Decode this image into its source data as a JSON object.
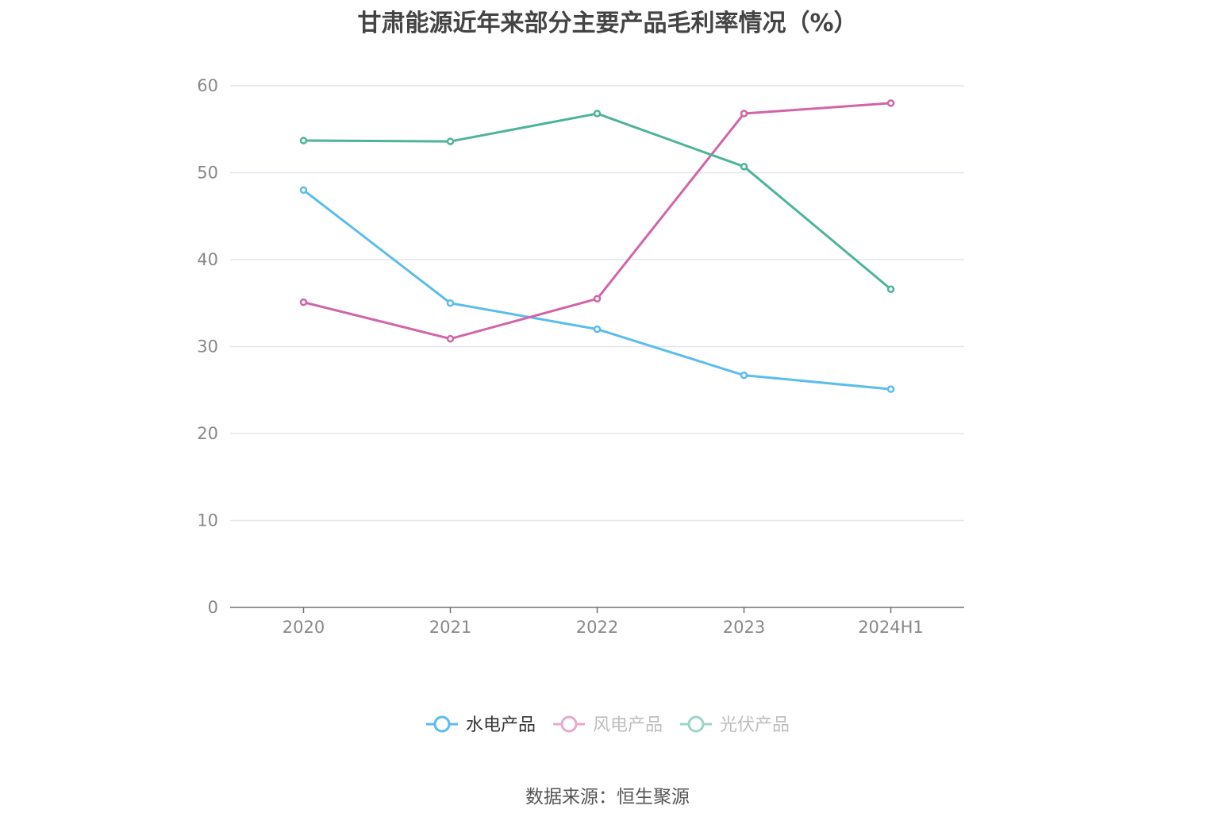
{
  "chart_data": {
    "type": "line",
    "title": "甘肃能源近年来部分主要产品毛利率情况（%）",
    "categories": [
      "2020",
      "2021",
      "2022",
      "2023",
      "2024H1"
    ],
    "ylim": [
      0,
      60
    ],
    "yticks": [
      "0",
      "10",
      "20",
      "30",
      "40",
      "50",
      "60"
    ],
    "grid": true,
    "legend_position": "bottom",
    "series": [
      {
        "name": "水电产品",
        "color": "#5bbcee",
        "values": [
          48.0,
          35.0,
          32.0,
          26.7,
          25.1
        ]
      },
      {
        "name": "风电产品",
        "color": "#d264a8",
        "values": [
          35.1,
          30.9,
          35.5,
          56.8,
          58.0
        ]
      },
      {
        "name": "光伏产品",
        "color": "#4db39a",
        "values": [
          53.7,
          53.6,
          56.8,
          50.7,
          36.6
        ]
      }
    ]
  },
  "source": "数据来源：恒生聚源"
}
